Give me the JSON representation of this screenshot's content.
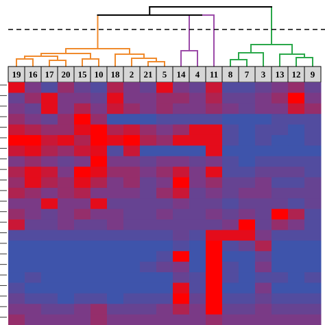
{
  "colors": {
    "cut_line": "#000000",
    "root_link": "#000000",
    "cluster_orange": "#f08a2c",
    "cluster_purple": "#9b4aa8",
    "cluster_green": "#2aa84a",
    "label_cell_bg": "#d6d6d6",
    "heat_low": "#1666c4",
    "heat_mid": "#7a3a86",
    "heat_high": "#ff0000"
  },
  "chart_data": {
    "type": "heatmap",
    "title": "",
    "xlabel": "",
    "ylabel": "",
    "columns": [
      "19",
      "16",
      "17",
      "20",
      "15",
      "10",
      "18",
      "2",
      "21",
      "5",
      "14",
      "4",
      "11",
      "8",
      "7",
      "3",
      "13",
      "12",
      "9"
    ],
    "clusters": [
      {
        "color": "orange",
        "members": [
          "19",
          "16",
          "17",
          "20",
          "15",
          "10",
          "18",
          "2",
          "21",
          "5"
        ]
      },
      {
        "color": "purple",
        "members": [
          "14",
          "4",
          "11"
        ]
      },
      {
        "color": "green",
        "members": [
          "8",
          "7",
          "3",
          "13",
          "12",
          "9"
        ]
      }
    ],
    "dendrogram_cut": "dashed",
    "value_range": [
      0,
      1
    ],
    "matrix": [
      [
        0.9,
        0.5,
        0.3,
        0.6,
        0.4,
        0.3,
        0.7,
        0.5,
        0.4,
        0.9,
        0.5,
        0.4,
        0.8,
        0.3,
        0.3,
        0.4,
        0.5,
        0.6,
        0.4
      ],
      [
        0.4,
        0.6,
        0.9,
        0.5,
        0.5,
        0.4,
        0.9,
        0.5,
        0.5,
        0.6,
        0.6,
        0.5,
        0.7,
        0.4,
        0.4,
        0.5,
        0.6,
        1.0,
        0.5
      ],
      [
        0.5,
        0.4,
        0.9,
        0.5,
        0.7,
        0.5,
        0.8,
        0.6,
        0.5,
        0.6,
        0.5,
        0.5,
        0.6,
        0.5,
        0.4,
        0.5,
        0.5,
        0.8,
        0.6
      ],
      [
        0.6,
        0.5,
        0.4,
        0.6,
        1.0,
        0.6,
        0.2,
        0.2,
        0.2,
        0.3,
        0.3,
        0.3,
        0.3,
        0.2,
        0.2,
        0.2,
        0.3,
        0.3,
        0.3
      ],
      [
        0.8,
        0.7,
        0.6,
        0.6,
        0.9,
        1.0,
        0.7,
        0.8,
        0.6,
        0.5,
        0.6,
        0.9,
        0.9,
        0.3,
        0.2,
        0.3,
        0.3,
        0.2,
        0.3
      ],
      [
        1.0,
        1.0,
        0.8,
        0.9,
        0.7,
        1.0,
        0.9,
        1.0,
        0.7,
        0.6,
        0.9,
        0.9,
        0.9,
        0.3,
        0.2,
        0.3,
        0.2,
        0.2,
        0.3
      ],
      [
        0.8,
        0.9,
        0.7,
        0.6,
        0.8,
        0.9,
        0.3,
        0.8,
        0.2,
        0.2,
        0.2,
        0.2,
        0.9,
        0.2,
        0.2,
        0.2,
        0.2,
        0.2,
        0.2
      ],
      [
        0.5,
        0.6,
        0.5,
        0.4,
        0.5,
        1.0,
        0.5,
        0.5,
        0.4,
        0.5,
        0.5,
        0.4,
        0.5,
        0.3,
        0.2,
        0.3,
        0.3,
        0.3,
        0.3
      ],
      [
        0.7,
        0.9,
        0.8,
        0.5,
        1.0,
        0.9,
        0.6,
        0.6,
        0.5,
        0.6,
        0.8,
        0.5,
        0.9,
        0.3,
        0.3,
        0.4,
        0.4,
        0.4,
        0.3
      ],
      [
        0.6,
        0.9,
        0.7,
        0.6,
        0.9,
        0.7,
        0.5,
        0.6,
        0.4,
        0.5,
        1.0,
        0.5,
        0.6,
        0.4,
        0.4,
        0.5,
        0.3,
        0.3,
        0.4
      ],
      [
        0.7,
        0.6,
        0.5,
        0.6,
        0.7,
        0.5,
        0.5,
        0.5,
        0.4,
        0.6,
        0.8,
        0.4,
        0.5,
        0.4,
        0.5,
        0.5,
        0.4,
        0.4,
        0.4
      ],
      [
        0.5,
        0.5,
        0.9,
        0.5,
        0.5,
        0.9,
        0.4,
        0.4,
        0.4,
        0.4,
        0.5,
        0.4,
        0.4,
        0.3,
        0.4,
        0.4,
        0.4,
        0.3,
        0.4
      ],
      [
        0.6,
        0.5,
        0.4,
        0.5,
        0.6,
        0.5,
        0.5,
        0.4,
        0.4,
        0.5,
        0.4,
        0.4,
        0.5,
        0.4,
        0.5,
        0.4,
        1.0,
        0.7,
        0.3
      ],
      [
        0.8,
        0.4,
        0.4,
        0.5,
        0.4,
        0.4,
        0.5,
        0.4,
        0.4,
        0.4,
        0.4,
        0.4,
        0.4,
        0.5,
        1.0,
        0.4,
        0.6,
        0.5,
        0.3
      ],
      [
        0.3,
        0.3,
        0.3,
        0.3,
        0.3,
        0.3,
        0.3,
        0.3,
        0.3,
        0.3,
        0.4,
        0.3,
        0.9,
        0.9,
        0.9,
        0.5,
        0.3,
        0.3,
        0.3
      ],
      [
        0.2,
        0.2,
        0.2,
        0.2,
        0.2,
        0.2,
        0.2,
        0.2,
        0.2,
        0.2,
        0.3,
        0.2,
        1.0,
        0.3,
        0.4,
        0.7,
        0.2,
        0.2,
        0.2
      ],
      [
        0.2,
        0.2,
        0.2,
        0.2,
        0.2,
        0.2,
        0.2,
        0.2,
        0.2,
        0.3,
        1.0,
        0.2,
        1.0,
        0.2,
        0.2,
        0.4,
        0.2,
        0.2,
        0.2
      ],
      [
        0.2,
        0.2,
        0.2,
        0.2,
        0.2,
        0.2,
        0.2,
        0.2,
        0.3,
        0.4,
        0.5,
        0.2,
        1.0,
        0.3,
        0.2,
        0.5,
        0.2,
        0.2,
        0.2
      ],
      [
        0.2,
        0.3,
        0.2,
        0.2,
        0.2,
        0.2,
        0.2,
        0.2,
        0.2,
        0.2,
        0.4,
        0.3,
        1.0,
        0.3,
        0.2,
        0.3,
        0.3,
        0.2,
        0.3
      ],
      [
        0.3,
        0.2,
        0.2,
        0.2,
        0.2,
        0.2,
        0.2,
        0.2,
        0.2,
        0.2,
        0.9,
        0.3,
        1.0,
        0.2,
        0.2,
        0.5,
        0.2,
        0.2,
        0.2
      ],
      [
        0.4,
        0.3,
        0.3,
        0.2,
        0.3,
        0.3,
        0.2,
        0.3,
        0.3,
        0.3,
        1.0,
        0.4,
        1.0,
        0.3,
        0.3,
        0.4,
        0.3,
        0.3,
        0.3
      ],
      [
        0.5,
        0.5,
        0.4,
        0.4,
        0.5,
        0.6,
        0.4,
        0.4,
        0.4,
        0.5,
        0.7,
        0.5,
        1.0,
        0.4,
        0.4,
        0.5,
        0.4,
        0.4,
        0.4
      ],
      [
        0.6,
        0.5,
        0.5,
        0.5,
        0.5,
        0.6,
        0.5,
        0.5,
        0.5,
        0.5,
        0.5,
        0.5,
        0.6,
        0.5,
        0.5,
        0.5,
        0.5,
        0.5,
        0.5
      ]
    ]
  }
}
